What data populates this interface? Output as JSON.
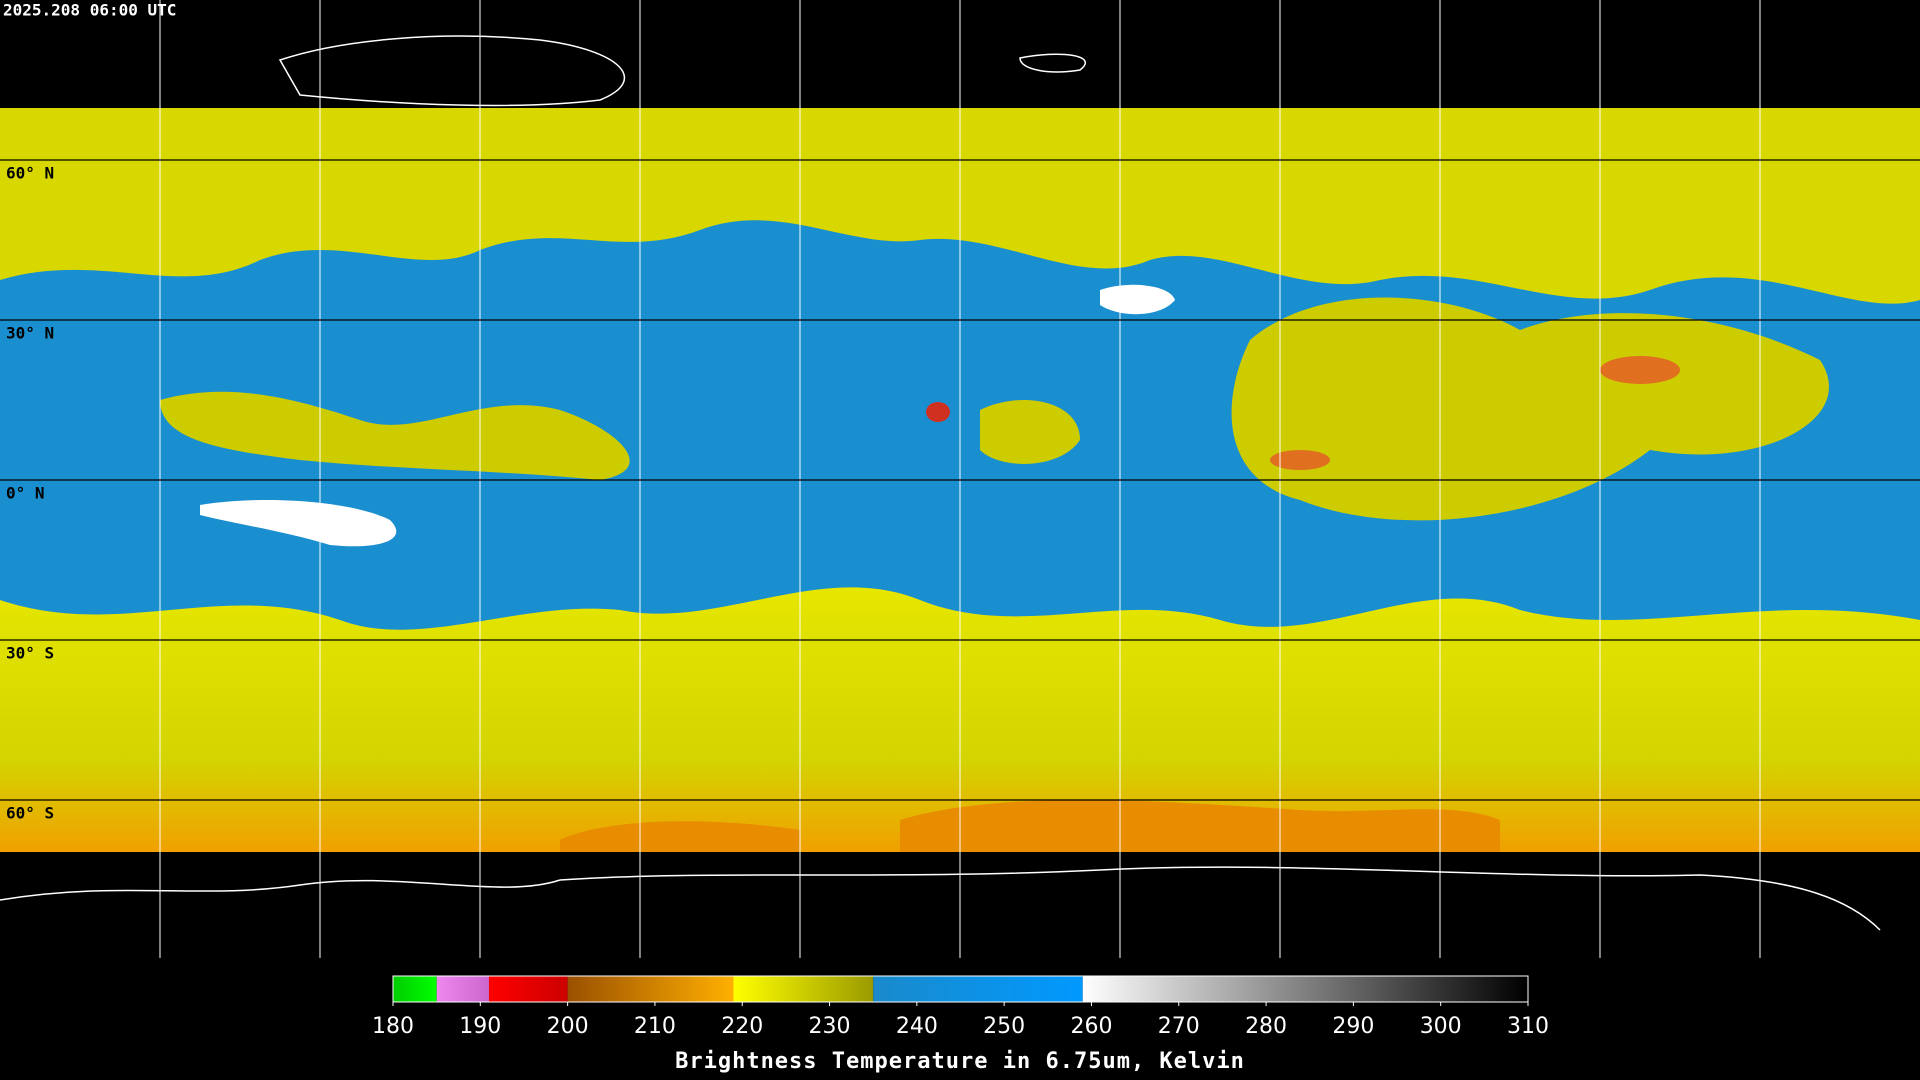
{
  "header": {
    "title": "2025.208 06:00 UTC"
  },
  "latitudes": [
    {
      "value": 60,
      "label": "60° N"
    },
    {
      "value": 30,
      "label": "30° N"
    },
    {
      "value": 0,
      "label": "0° N"
    },
    {
      "value": -30,
      "label": "30° S"
    },
    {
      "value": -60,
      "label": "60° S"
    }
  ],
  "colorbar": {
    "range": [
      180,
      310
    ],
    "ticks": [
      180,
      190,
      200,
      210,
      220,
      230,
      240,
      250,
      260,
      270,
      280,
      290,
      300,
      310
    ],
    "segments": [
      {
        "from": 180,
        "to": 185,
        "color_start": "#00cc00",
        "color_end": "#00ff00"
      },
      {
        "from": 185,
        "to": 191,
        "color_start": "#ee88ee",
        "color_end": "#cc66cc"
      },
      {
        "from": 191,
        "to": 200,
        "color_start": "#ff0000",
        "color_end": "#cc0000"
      },
      {
        "from": 200,
        "to": 219,
        "color_start": "#9a5000",
        "color_end": "#ffb000"
      },
      {
        "from": 219,
        "to": 235,
        "color_start": "#ffff00",
        "color_end": "#9a9a00"
      },
      {
        "from": 235,
        "to": 259,
        "color_start": "#1a8acb",
        "color_end": "#0099ff"
      },
      {
        "from": 259,
        "to": 310,
        "color_start": "#ffffff",
        "color_end": "#000000"
      }
    ],
    "label": "Brightness Temperature in 6.75um, Kelvin"
  }
}
